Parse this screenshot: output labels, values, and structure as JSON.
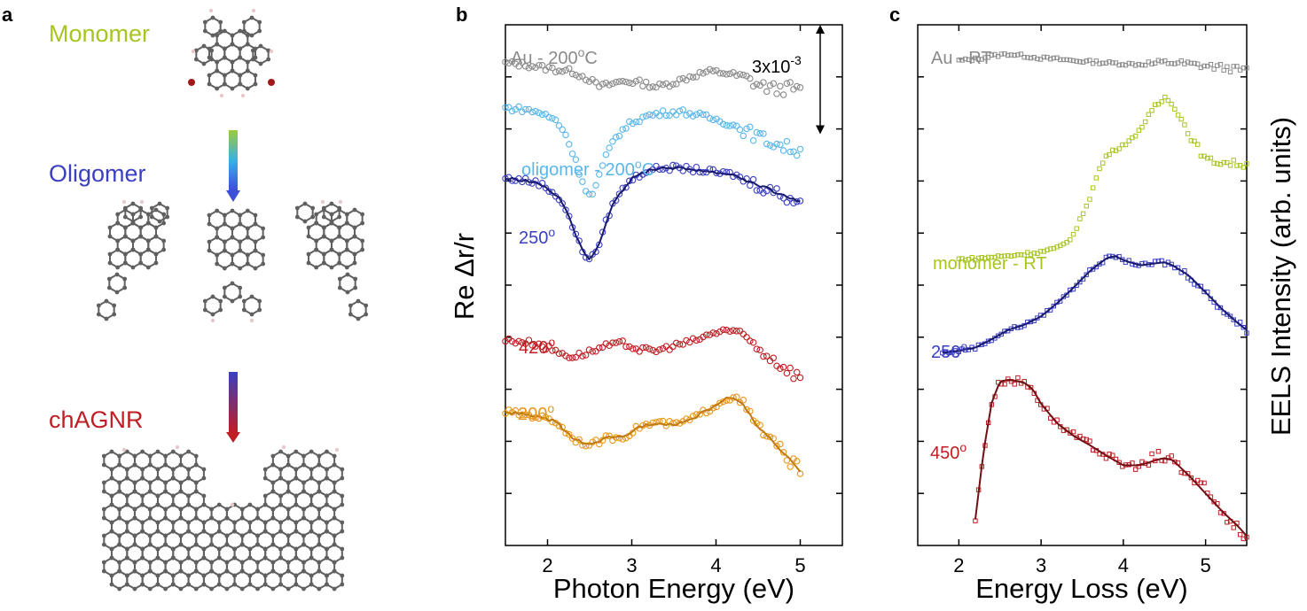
{
  "panels": {
    "a": {
      "letter": "a",
      "labels": [
        {
          "text": "Monomer",
          "color": "#a7c520"
        },
        {
          "text": "Oligomer",
          "color": "#3b3fc1"
        },
        {
          "text": "chAGNR",
          "color": "#bf1e24"
        }
      ],
      "arrow_colors": [
        [
          "#9acd32",
          "#3ab0e8",
          "#3b4fd8"
        ],
        [
          "#3b3fc1",
          "#bf1e24"
        ]
      ],
      "atom_colors": {
        "carbon": "#606060",
        "hydrogen": "#e8c8cc",
        "bromine": "#a01818",
        "fade": "#c8c8c8"
      }
    },
    "b": {
      "letter": "b"
    },
    "c": {
      "letter": "c"
    }
  },
  "chart_data": [
    {
      "type": "scatter",
      "panel": "b",
      "xlabel": "Photon Energy (eV)",
      "ylabel": "Re Δr/r",
      "xlim": [
        1.5,
        5.5
      ],
      "xticks": [
        "2",
        "3",
        "4",
        "5"
      ],
      "ylim": [
        0,
        100
      ],
      "scale_bar": {
        "label": "3x10",
        "exponent": "-3",
        "from": 79,
        "to": 100
      },
      "series": [
        {
          "name": "Au - 200°C",
          "label": "Au - 200",
          "label_sup": "o",
          "label_tail": "C",
          "color": "#8a8a8a",
          "x": [
            1.5,
            1.7,
            1.9,
            2.1,
            2.3,
            2.5,
            2.6,
            2.7,
            2.9,
            3.1,
            3.3,
            3.5,
            3.7,
            3.9,
            4.1,
            4.3,
            4.5,
            4.7,
            4.9,
            5.0
          ],
          "y": [
            92.6,
            92.4,
            91.9,
            91.4,
            91.0,
            89.5,
            88.2,
            88.4,
            89.2,
            88.9,
            88.1,
            88.9,
            90.1,
            91.0,
            90.8,
            90.1,
            88.5,
            87.6,
            87.9,
            87.2
          ]
        },
        {
          "name": "oligomer - 200°C",
          "label": "oligomer - 200",
          "label_sup": "o",
          "label_tail": "C",
          "color": "#5ab6ea",
          "x": [
            1.5,
            1.7,
            1.9,
            2.1,
            2.2,
            2.3,
            2.4,
            2.45,
            2.5,
            2.55,
            2.6,
            2.7,
            2.8,
            3.0,
            3.2,
            3.4,
            3.6,
            3.8,
            4.0,
            4.2,
            4.4,
            4.6,
            4.8,
            5.0
          ],
          "y": [
            84.0,
            83.8,
            83.2,
            81.6,
            79.5,
            75.4,
            70.6,
            68.6,
            67.1,
            67.8,
            70.3,
            74.9,
            78.4,
            81.3,
            82.6,
            83.1,
            83.3,
            82.6,
            81.8,
            80.8,
            79.3,
            77.8,
            76.7,
            75.7
          ]
        },
        {
          "name": "250°",
          "label": "250",
          "label_sup": "o",
          "label_tail": "",
          "color": "#3b3fc1",
          "fit_color": "#1a1a6e",
          "x": [
            1.5,
            1.7,
            1.9,
            2.1,
            2.2,
            2.3,
            2.4,
            2.45,
            2.5,
            2.55,
            2.6,
            2.7,
            2.8,
            3.0,
            3.2,
            3.4,
            3.6,
            3.8,
            4.0,
            4.2,
            4.4,
            4.6,
            4.8,
            5.0
          ],
          "y": [
            70.5,
            70.2,
            69.6,
            67.4,
            65.2,
            61.2,
            57.0,
            55.8,
            55.2,
            55.6,
            57.4,
            62.4,
            66.5,
            70.4,
            72.1,
            72.6,
            72.4,
            72.1,
            71.6,
            71.3,
            69.8,
            68.6,
            67.2,
            66.1
          ]
        },
        {
          "name": "420°",
          "label": "420",
          "label_sup": "o",
          "label_tail": "",
          "color": "#bf1e24",
          "x": [
            1.5,
            1.7,
            1.9,
            2.1,
            2.3,
            2.5,
            2.7,
            2.9,
            3.1,
            3.3,
            3.5,
            3.7,
            3.9,
            4.1,
            4.3,
            4.5,
            4.7,
            4.9,
            5.0
          ],
          "y": [
            39.4,
            39.2,
            38.6,
            37.3,
            36.2,
            37.2,
            38.3,
            38.8,
            37.6,
            37.4,
            38.4,
            39.1,
            40.3,
            41.5,
            40.6,
            37.9,
            35.5,
            33.3,
            32.5
          ]
        },
        {
          "name": "200°",
          "label": "200",
          "label_sup": "o",
          "label_tail": "",
          "color": "#e8961a",
          "fit_color": "#c07a12",
          "x": [
            1.5,
            1.7,
            1.9,
            2.1,
            2.3,
            2.5,
            2.7,
            2.9,
            3.1,
            3.3,
            3.5,
            3.7,
            3.9,
            4.1,
            4.2,
            4.3,
            4.5,
            4.7,
            4.9,
            5.0
          ],
          "y": [
            25.7,
            25.2,
            24.7,
            23.8,
            20.6,
            19.2,
            20.6,
            20.8,
            22.9,
            23.6,
            23.2,
            24.2,
            26.0,
            28.0,
            28.6,
            27.4,
            22.8,
            19.4,
            16.0,
            14.4
          ]
        }
      ]
    },
    {
      "type": "scatter",
      "panel": "c",
      "xlabel": "Energy Loss (eV)",
      "ylabel": "EELS Intensity (arb. units)",
      "xlim": [
        1.5,
        5.5
      ],
      "xticks": [
        "2",
        "3",
        "4",
        "5"
      ],
      "ylim": [
        0,
        100
      ],
      "series": [
        {
          "name": "Au - RT",
          "label": "Au - RT",
          "label_sup": "",
          "label_tail": "",
          "color": "#8a8a8a",
          "x": [
            2.0,
            2.2,
            2.4,
            2.6,
            2.8,
            3.0,
            3.2,
            3.4,
            3.6,
            3.8,
            4.0,
            4.2,
            4.4,
            4.6,
            4.8,
            5.0,
            5.2,
            5.4,
            5.5
          ],
          "y": [
            93.1,
            93.4,
            94.0,
            94.4,
            94.0,
            93.6,
            93.4,
            93.1,
            92.9,
            92.7,
            92.5,
            92.4,
            92.6,
            92.8,
            92.4,
            92.1,
            91.8,
            91.4,
            91.3
          ]
        },
        {
          "name": "monomer - RT",
          "label": "monomer - RT",
          "label_sup": "",
          "label_tail": "",
          "color": "#a7c520",
          "x": [
            2.0,
            2.2,
            2.4,
            2.6,
            2.8,
            3.0,
            3.2,
            3.3,
            3.4,
            3.5,
            3.6,
            3.7,
            3.8,
            3.9,
            4.0,
            4.1,
            4.2,
            4.3,
            4.4,
            4.5,
            4.6,
            4.7,
            4.8,
            4.9,
            5.0,
            5.2,
            5.4,
            5.5
          ],
          "y": [
            55.0,
            55.1,
            55.4,
            55.6,
            56.0,
            56.4,
            57.1,
            58.1,
            59.8,
            63.5,
            67.1,
            72.0,
            75.0,
            76.0,
            77.0,
            77.9,
            80.0,
            82.0,
            84.4,
            86.0,
            85.2,
            82.0,
            79.0,
            76.5,
            74.0,
            73.6,
            73.3,
            73.1
          ]
        },
        {
          "name": "250°",
          "label": "250",
          "label_sup": "o",
          "label_tail": "",
          "color": "#3b3fc1",
          "fit_color": "#1a1a6e",
          "x": [
            1.8,
            2.0,
            2.2,
            2.4,
            2.6,
            2.8,
            3.0,
            3.2,
            3.4,
            3.6,
            3.8,
            3.9,
            4.0,
            4.2,
            4.4,
            4.5,
            4.6,
            4.8,
            5.0,
            5.2,
            5.4,
            5.5
          ],
          "y": [
            37.0,
            37.4,
            38.0,
            39.6,
            41.4,
            42.4,
            44.0,
            46.6,
            49.6,
            52.8,
            55.2,
            55.6,
            54.8,
            53.8,
            54.2,
            54.4,
            53.8,
            51.8,
            48.6,
            45.4,
            42.6,
            41.4
          ]
        },
        {
          "name": "450°",
          "label": "450",
          "label_sup": "o",
          "label_tail": "",
          "color": "#bf1e24",
          "fit_color": "#6e1014",
          "x": [
            2.2,
            2.3,
            2.4,
            2.5,
            2.6,
            2.7,
            2.8,
            2.9,
            3.0,
            3.2,
            3.4,
            3.6,
            3.8,
            4.0,
            4.2,
            4.4,
            4.5,
            4.6,
            4.8,
            5.0,
            5.2,
            5.4,
            5.5
          ],
          "y": [
            5.0,
            18.0,
            27.5,
            31.5,
            31.8,
            31.6,
            31.2,
            30.0,
            27.2,
            23.4,
            21.0,
            19.2,
            17.2,
            15.4,
            15.4,
            16.4,
            16.8,
            16.4,
            13.4,
            10.0,
            6.6,
            3.6,
            1.8
          ]
        }
      ]
    }
  ]
}
